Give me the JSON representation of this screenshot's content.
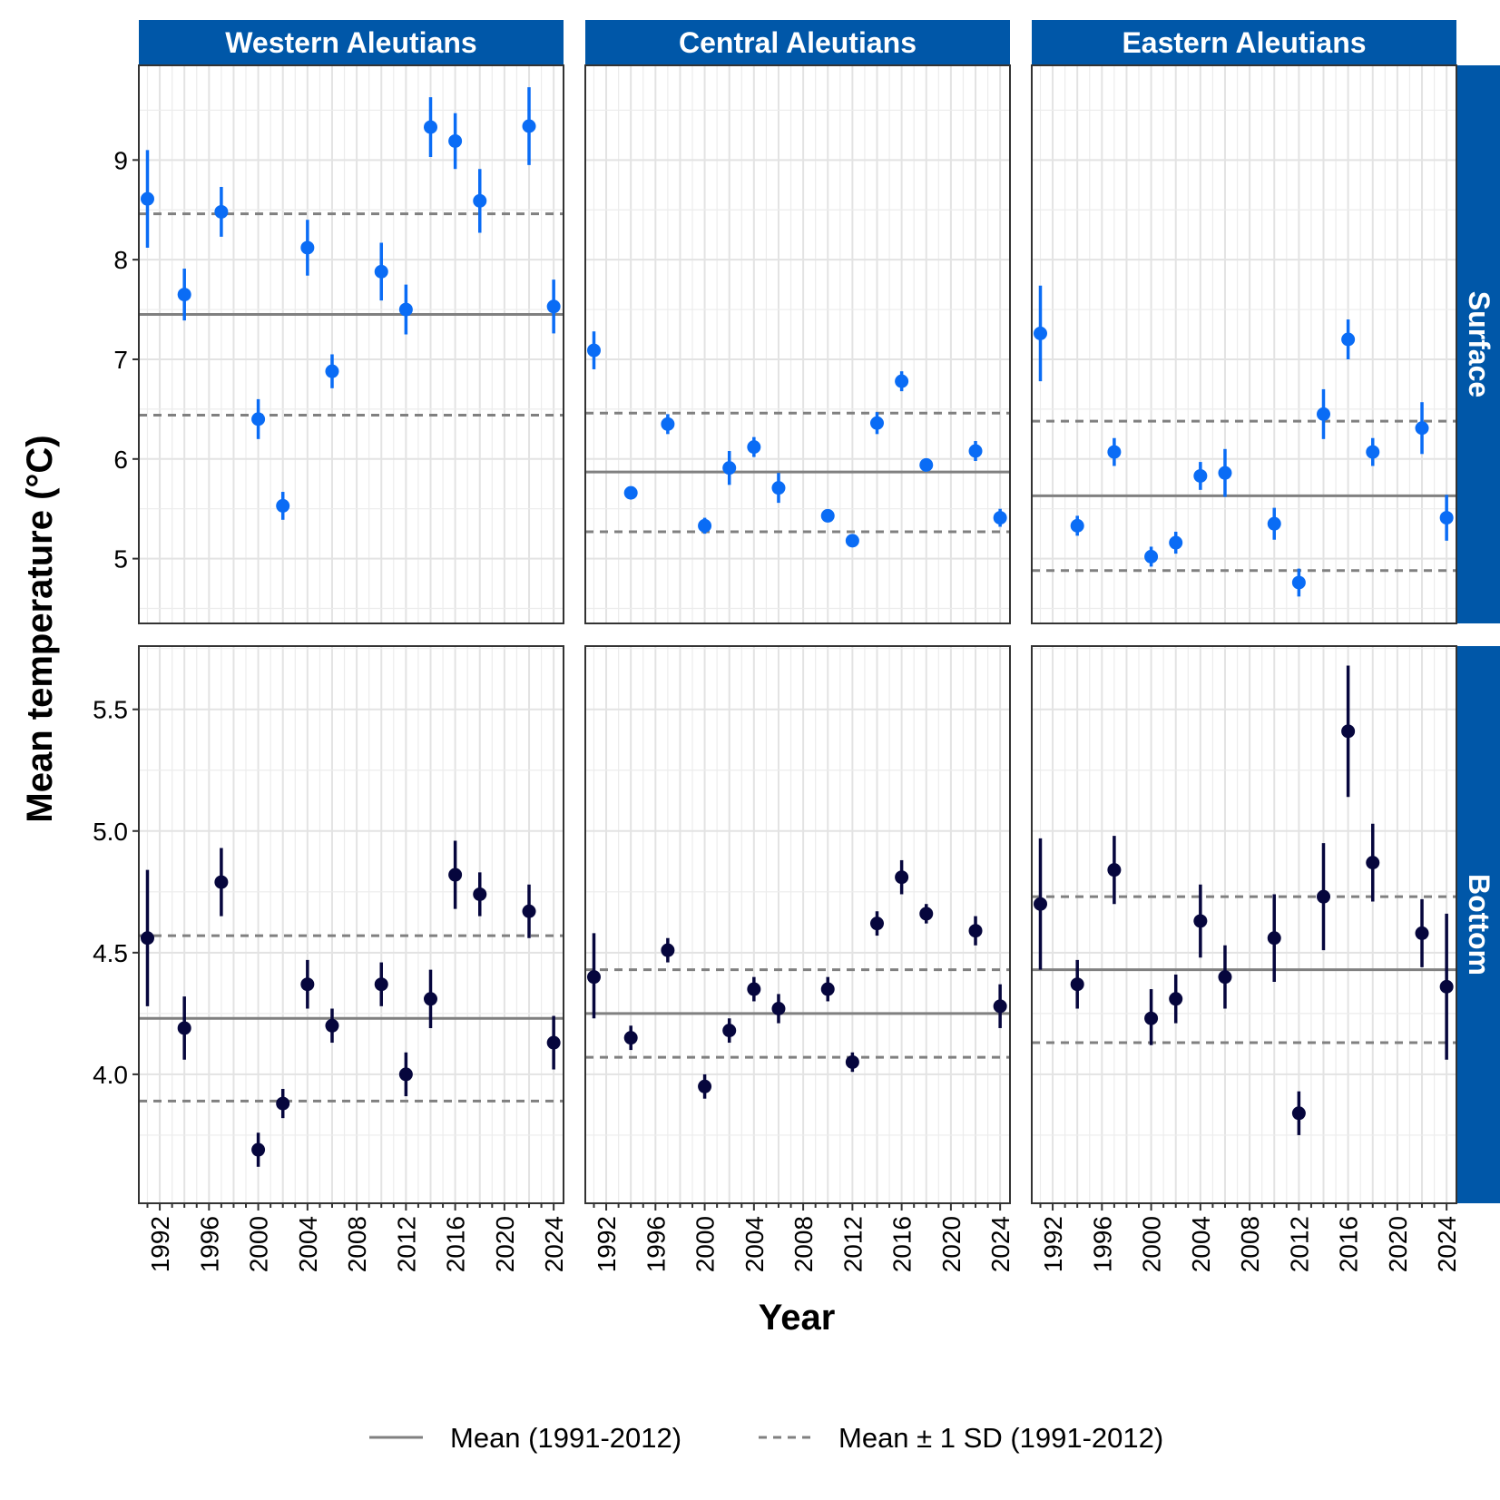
{
  "chart_data": {
    "type": "scatter",
    "xlabel": "Year",
    "ylabel": "Mean temperature (°C)",
    "x_ticks": [
      1992,
      1996,
      2000,
      2004,
      2008,
      2012,
      2016,
      2020,
      2024
    ],
    "xlim": [
      1990.3,
      2024.8
    ],
    "columns": [
      "Western Aleutians",
      "Central Aleutians",
      "Eastern Aleutians"
    ],
    "rows": [
      {
        "name": "Surface",
        "color": "#0a6cf5",
        "ylim": [
          4.35,
          9.95
        ],
        "y_ticks": [
          5,
          6,
          7,
          8,
          9
        ],
        "y_tick_labels": [
          "5",
          "6",
          "7",
          "8",
          "9"
        ]
      },
      {
        "name": "Bottom",
        "color": "#06063d",
        "ylim": [
          3.47,
          5.76
        ],
        "y_ticks": [
          4.0,
          4.5,
          5.0,
          5.5
        ],
        "y_tick_labels": [
          "4.0",
          "4.5",
          "5.0",
          "5.5"
        ]
      }
    ],
    "strip_color": "#0057a8",
    "mean_line_color": "#808080",
    "legend": {
      "position": "bottom",
      "items": [
        {
          "label": "Mean (1991-2012)",
          "style": "solid"
        },
        {
          "label": "Mean ± 1 SD (1991-2012)",
          "style": "dashed"
        }
      ]
    },
    "panels": [
      {
        "region": "Western Aleutians",
        "depth": "Surface",
        "mean": 7.45,
        "sd_low": 6.44,
        "sd_high": 8.46,
        "points": [
          {
            "x": 1991,
            "y": 8.61,
            "lo": 8.12,
            "hi": 9.1
          },
          {
            "x": 1994,
            "y": 7.65,
            "lo": 7.39,
            "hi": 7.91
          },
          {
            "x": 1997,
            "y": 8.48,
            "lo": 8.23,
            "hi": 8.73
          },
          {
            "x": 2000,
            "y": 6.4,
            "lo": 6.2,
            "hi": 6.6
          },
          {
            "x": 2002,
            "y": 5.53,
            "lo": 5.39,
            "hi": 5.67
          },
          {
            "x": 2004,
            "y": 8.12,
            "lo": 7.84,
            "hi": 8.4
          },
          {
            "x": 2006,
            "y": 6.88,
            "lo": 6.71,
            "hi": 7.05
          },
          {
            "x": 2010,
            "y": 7.88,
            "lo": 7.59,
            "hi": 8.17
          },
          {
            "x": 2012,
            "y": 7.5,
            "lo": 7.25,
            "hi": 7.75
          },
          {
            "x": 2014,
            "y": 9.33,
            "lo": 9.03,
            "hi": 9.63
          },
          {
            "x": 2016,
            "y": 9.19,
            "lo": 8.91,
            "hi": 9.47
          },
          {
            "x": 2018,
            "y": 8.59,
            "lo": 8.27,
            "hi": 8.91
          },
          {
            "x": 2022,
            "y": 9.34,
            "lo": 8.95,
            "hi": 9.73
          },
          {
            "x": 2024,
            "y": 7.53,
            "lo": 7.26,
            "hi": 7.8
          }
        ]
      },
      {
        "region": "Central Aleutians",
        "depth": "Surface",
        "mean": 5.87,
        "sd_low": 5.27,
        "sd_high": 6.46,
        "points": [
          {
            "x": 1991,
            "y": 7.09,
            "lo": 6.9,
            "hi": 7.28
          },
          {
            "x": 1994,
            "y": 5.66,
            "lo": 5.6,
            "hi": 5.72
          },
          {
            "x": 1997,
            "y": 6.35,
            "lo": 6.25,
            "hi": 6.45
          },
          {
            "x": 2000,
            "y": 5.33,
            "lo": 5.25,
            "hi": 5.41
          },
          {
            "x": 2002,
            "y": 5.91,
            "lo": 5.74,
            "hi": 6.08
          },
          {
            "x": 2004,
            "y": 6.12,
            "lo": 6.02,
            "hi": 6.22
          },
          {
            "x": 2006,
            "y": 5.71,
            "lo": 5.56,
            "hi": 5.86
          },
          {
            "x": 2010,
            "y": 5.43,
            "lo": 5.37,
            "hi": 5.49
          },
          {
            "x": 2012,
            "y": 5.18,
            "lo": 5.12,
            "hi": 5.24
          },
          {
            "x": 2014,
            "y": 6.36,
            "lo": 6.25,
            "hi": 6.47
          },
          {
            "x": 2016,
            "y": 6.78,
            "lo": 6.68,
            "hi": 6.88
          },
          {
            "x": 2018,
            "y": 5.94,
            "lo": 5.89,
            "hi": 5.99
          },
          {
            "x": 2022,
            "y": 6.08,
            "lo": 5.98,
            "hi": 6.18
          },
          {
            "x": 2024,
            "y": 5.41,
            "lo": 5.32,
            "hi": 5.5
          }
        ]
      },
      {
        "region": "Eastern Aleutians",
        "depth": "Surface",
        "mean": 5.63,
        "sd_low": 4.88,
        "sd_high": 6.38,
        "points": [
          {
            "x": 1991,
            "y": 7.26,
            "lo": 6.78,
            "hi": 7.74
          },
          {
            "x": 1994,
            "y": 5.33,
            "lo": 5.23,
            "hi": 5.43
          },
          {
            "x": 1997,
            "y": 6.07,
            "lo": 5.93,
            "hi": 6.21
          },
          {
            "x": 2000,
            "y": 5.02,
            "lo": 4.92,
            "hi": 5.12
          },
          {
            "x": 2002,
            "y": 5.16,
            "lo": 5.05,
            "hi": 5.27
          },
          {
            "x": 2004,
            "y": 5.83,
            "lo": 5.69,
            "hi": 5.97
          },
          {
            "x": 2006,
            "y": 5.86,
            "lo": 5.62,
            "hi": 6.1
          },
          {
            "x": 2010,
            "y": 5.35,
            "lo": 5.19,
            "hi": 5.51
          },
          {
            "x": 2012,
            "y": 4.76,
            "lo": 4.62,
            "hi": 4.9
          },
          {
            "x": 2014,
            "y": 6.45,
            "lo": 6.2,
            "hi": 6.7
          },
          {
            "x": 2016,
            "y": 7.2,
            "lo": 7.0,
            "hi": 7.4
          },
          {
            "x": 2018,
            "y": 6.07,
            "lo": 5.93,
            "hi": 6.21
          },
          {
            "x": 2022,
            "y": 6.31,
            "lo": 6.05,
            "hi": 6.57
          },
          {
            "x": 2024,
            "y": 5.41,
            "lo": 5.18,
            "hi": 5.64
          }
        ]
      },
      {
        "region": "Western Aleutians",
        "depth": "Bottom",
        "mean": 4.23,
        "sd_low": 3.89,
        "sd_high": 4.57,
        "points": [
          {
            "x": 1991,
            "y": 4.56,
            "lo": 4.28,
            "hi": 4.84
          },
          {
            "x": 1994,
            "y": 4.19,
            "lo": 4.06,
            "hi": 4.32
          },
          {
            "x": 1997,
            "y": 4.79,
            "lo": 4.65,
            "hi": 4.93
          },
          {
            "x": 2000,
            "y": 3.69,
            "lo": 3.62,
            "hi": 3.76
          },
          {
            "x": 2002,
            "y": 3.88,
            "lo": 3.82,
            "hi": 3.94
          },
          {
            "x": 2004,
            "y": 4.37,
            "lo": 4.27,
            "hi": 4.47
          },
          {
            "x": 2006,
            "y": 4.2,
            "lo": 4.13,
            "hi": 4.27
          },
          {
            "x": 2010,
            "y": 4.37,
            "lo": 4.28,
            "hi": 4.46
          },
          {
            "x": 2012,
            "y": 4.0,
            "lo": 3.91,
            "hi": 4.09
          },
          {
            "x": 2014,
            "y": 4.31,
            "lo": 4.19,
            "hi": 4.43
          },
          {
            "x": 2016,
            "y": 4.82,
            "lo": 4.68,
            "hi": 4.96
          },
          {
            "x": 2018,
            "y": 4.74,
            "lo": 4.65,
            "hi": 4.83
          },
          {
            "x": 2022,
            "y": 4.67,
            "lo": 4.56,
            "hi": 4.78
          },
          {
            "x": 2024,
            "y": 4.13,
            "lo": 4.02,
            "hi": 4.24
          }
        ]
      },
      {
        "region": "Central Aleutians",
        "depth": "Bottom",
        "mean": 4.25,
        "sd_low": 4.07,
        "sd_high": 4.43,
        "points": [
          {
            "x": 1991,
            "y": 4.4,
            "lo": 4.23,
            "hi": 4.58
          },
          {
            "x": 1994,
            "y": 4.15,
            "lo": 4.1,
            "hi": 4.2
          },
          {
            "x": 1997,
            "y": 4.51,
            "lo": 4.46,
            "hi": 4.56
          },
          {
            "x": 2000,
            "y": 3.95,
            "lo": 3.9,
            "hi": 4.0
          },
          {
            "x": 2002,
            "y": 4.18,
            "lo": 4.13,
            "hi": 4.23
          },
          {
            "x": 2004,
            "y": 4.35,
            "lo": 4.3,
            "hi": 4.4
          },
          {
            "x": 2006,
            "y": 4.27,
            "lo": 4.21,
            "hi": 4.33
          },
          {
            "x": 2010,
            "y": 4.35,
            "lo": 4.3,
            "hi": 4.4
          },
          {
            "x": 2012,
            "y": 4.05,
            "lo": 4.01,
            "hi": 4.09
          },
          {
            "x": 2014,
            "y": 4.62,
            "lo": 4.57,
            "hi": 4.67
          },
          {
            "x": 2016,
            "y": 4.81,
            "lo": 4.74,
            "hi": 4.88
          },
          {
            "x": 2018,
            "y": 4.66,
            "lo": 4.62,
            "hi": 4.7
          },
          {
            "x": 2022,
            "y": 4.59,
            "lo": 4.53,
            "hi": 4.65
          },
          {
            "x": 2024,
            "y": 4.28,
            "lo": 4.19,
            "hi": 4.37
          }
        ]
      },
      {
        "region": "Eastern Aleutians",
        "depth": "Bottom",
        "mean": 4.43,
        "sd_low": 4.13,
        "sd_high": 4.73,
        "points": [
          {
            "x": 1991,
            "y": 4.7,
            "lo": 4.43,
            "hi": 4.97
          },
          {
            "x": 1994,
            "y": 4.37,
            "lo": 4.27,
            "hi": 4.47
          },
          {
            "x": 1997,
            "y": 4.84,
            "lo": 4.7,
            "hi": 4.98
          },
          {
            "x": 2000,
            "y": 4.23,
            "lo": 4.12,
            "hi": 4.35
          },
          {
            "x": 2002,
            "y": 4.31,
            "lo": 4.21,
            "hi": 4.41
          },
          {
            "x": 2004,
            "y": 4.63,
            "lo": 4.48,
            "hi": 4.78
          },
          {
            "x": 2006,
            "y": 4.4,
            "lo": 4.27,
            "hi": 4.53
          },
          {
            "x": 2010,
            "y": 4.56,
            "lo": 4.38,
            "hi": 4.74
          },
          {
            "x": 2012,
            "y": 3.84,
            "lo": 3.75,
            "hi": 3.93
          },
          {
            "x": 2014,
            "y": 4.73,
            "lo": 4.51,
            "hi": 4.95
          },
          {
            "x": 2016,
            "y": 5.41,
            "lo": 5.14,
            "hi": 5.68
          },
          {
            "x": 2018,
            "y": 4.87,
            "lo": 4.71,
            "hi": 5.03
          },
          {
            "x": 2022,
            "y": 4.58,
            "lo": 4.44,
            "hi": 4.72
          },
          {
            "x": 2024,
            "y": 4.36,
            "lo": 4.06,
            "hi": 4.66
          }
        ]
      }
    ]
  }
}
